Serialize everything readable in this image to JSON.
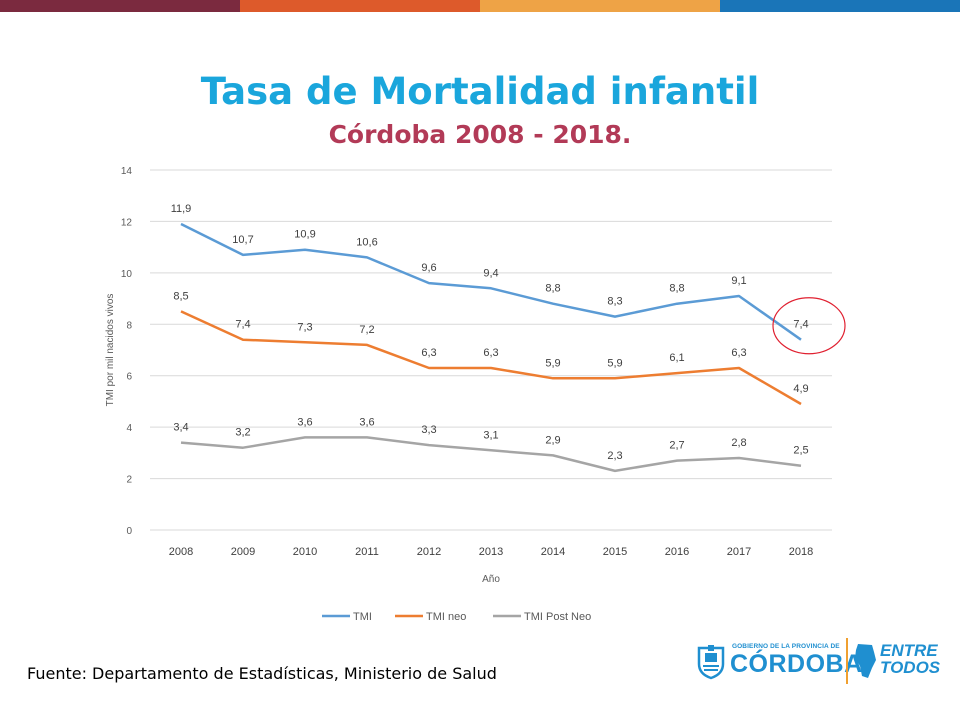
{
  "header": {
    "title": "Tasa de Mortalidad infantil",
    "subtitle": "Córdoba 2008 - 2018."
  },
  "topbar_colors": [
    "#7b2a3f",
    "#dd5a2b",
    "#eea346",
    "#1a75b8"
  ],
  "colors": {
    "title": "#1aa6dc",
    "subtitle": "#b23a57",
    "tmi": "#5b9bd5",
    "tmi_neo": "#ed7d31",
    "tmi_post_neo": "#a5a5a5",
    "highlight_circle": "#e02030"
  },
  "chart_data": {
    "type": "line",
    "categories": [
      "2008",
      "2009",
      "2010",
      "2011",
      "2012",
      "2013",
      "2014",
      "2015",
      "2016",
      "2017",
      "2018"
    ],
    "series": [
      {
        "name": "TMI",
        "values": [
          11.9,
          10.7,
          10.9,
          10.6,
          9.6,
          9.4,
          8.8,
          8.3,
          8.8,
          9.1,
          7.4
        ],
        "labels": [
          "11,9",
          "10,7",
          "10,9",
          "10,6",
          "9,6",
          "9,4",
          "8,8",
          "8,3",
          "8,8",
          "9,1",
          "7,4"
        ]
      },
      {
        "name": "TMI neo",
        "values": [
          8.5,
          7.4,
          7.3,
          7.2,
          6.3,
          6.3,
          5.9,
          5.9,
          6.1,
          6.3,
          4.9
        ],
        "labels": [
          "8,5",
          "7,4",
          "7,3",
          "7,2",
          "6,3",
          "6,3",
          "5,9",
          "5,9",
          "6,1",
          "6,3",
          "4,9"
        ]
      },
      {
        "name": "TMI Post Neo",
        "values": [
          3.4,
          3.2,
          3.6,
          3.6,
          3.3,
          3.1,
          2.9,
          2.3,
          2.7,
          2.8,
          2.5
        ],
        "labels": [
          "3,4",
          "3,2",
          "3,6",
          "3,6",
          "3,3",
          "3,1",
          "2,9",
          "2,3",
          "2,7",
          "2,8",
          "2,5"
        ]
      }
    ],
    "xlabel": "Año",
    "ylabel": "TMI por mil nacidos vivos",
    "ylim": [
      0,
      14
    ],
    "yticks": [
      "0",
      "2",
      "4",
      "6",
      "8",
      "10",
      "12",
      "14"
    ],
    "grid": "horizontal",
    "legend": "bottom",
    "highlight": {
      "series": "TMI",
      "category": "2018",
      "shape": "circle"
    }
  },
  "footer": {
    "source": "Fuente: Departamento de Estadísticas, Ministerio de Salud",
    "logo_top": "GOBIERNO DE LA PROVINCIA DE",
    "logo_name": "CÓRDOBA",
    "logo_slogan_1": "ENTRE",
    "logo_slogan_2": "TODOS"
  }
}
